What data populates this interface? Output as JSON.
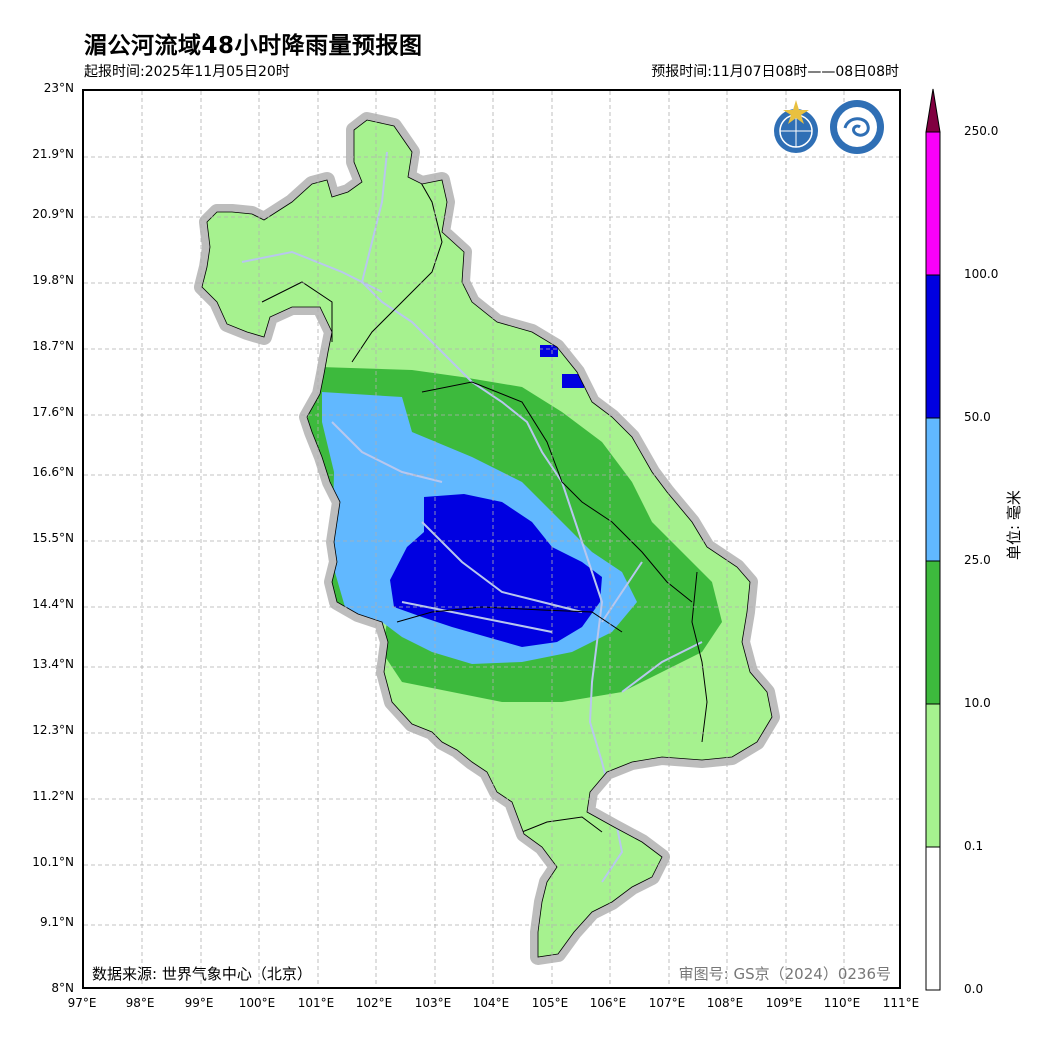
{
  "title": "湄公河流域48小时降雨量预报图",
  "issue_time": "起报时间:2025年11月05日20时",
  "forecast_time": "预报时间:11月07日08时——08日08时",
  "data_source": "数据来源: 世界气象中心（北京）",
  "approval_number": "审图号: GS京（2024）0236号",
  "latitude_labels": [
    "23°N",
    "21.9°N",
    "20.9°N",
    "19.8°N",
    "18.7°N",
    "17.6°N",
    "16.6°N",
    "15.5°N",
    "14.4°N",
    "13.4°N",
    "12.3°N",
    "11.2°N",
    "10.1°N",
    "9.1°N",
    "8°N"
  ],
  "longitude_labels": [
    "97°E",
    "98°E",
    "99°E",
    "100°E",
    "101°E",
    "102°E",
    "103°E",
    "104°E",
    "105°E",
    "106°E",
    "107°E",
    "108°E",
    "109°E",
    "110°E",
    "111°E"
  ],
  "colorbar": {
    "unit_label": "单位: 毫米",
    "levels": [
      "0.0",
      "0.1",
      "10.0",
      "25.0",
      "50.0",
      "100.0",
      "250.0"
    ],
    "colors": [
      "#ffffff",
      "#a6f28f",
      "#3dba3d",
      "#61b8ff",
      "#0000e1",
      "#fa00fa",
      "#800040"
    ]
  },
  "logos": [
    "wmo-logo-icon",
    "cma-logo-icon"
  ],
  "colors": {
    "outside_buffer": "#bdbdbd",
    "rivers": "#b8c7ee",
    "grid": "#b0b0b0"
  }
}
